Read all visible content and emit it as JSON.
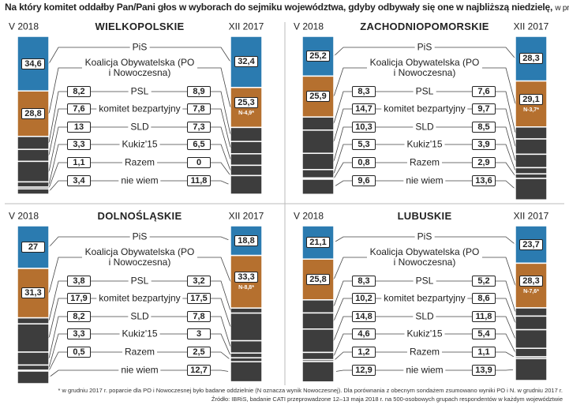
{
  "title": "Na który komitet oddałby Pan/Pani głos w wyborach do sejmiku województwa, gdyby odbywały się one w najbliższą niedzielę,",
  "unit": "w proc.",
  "footnote": "* w grudniu 2017 r. poparcie dla PO i Nowoczesnej było badane oddzielnie (N oznacza wynik Nowoczesnej). Dla porównania z obecnym sondażem zsumowano wyniki PO i N. w grudniu 2017 r.",
  "source": "Źródło: IBRiS, badanie CATI przeprowadzone 12–13 maja 2018 r. na 500-osobowych grupach respondentów w każdym województwie",
  "chart_data": [
    {
      "type": "stacked-bar",
      "title": "WIELKOPOLSKIE",
      "categories": [
        "PiS",
        "Koalicja Obywatelska (PO i Nowoczesna)",
        "PSL",
        "komitet bezpartyjny",
        "SLD",
        "Kukiz'15",
        "Razem",
        "nie wiem"
      ],
      "colors": [
        "#2b7bb0",
        "#b5702f",
        "#3d3d3d",
        "#3d3d3d",
        "#3d3d3d",
        "#3d3d3d",
        "#3d3d3d",
        "#3d3d3d"
      ],
      "ylim": [
        0,
        100
      ],
      "series": [
        {
          "name": "V 2018",
          "values": [
            34.6,
            28.8,
            8.2,
            7.6,
            13,
            3.3,
            1.1,
            3.4
          ],
          "value_labels": [
            "34,6",
            "28,8",
            "8,2",
            "7,6",
            "13",
            "3,3",
            "1,1",
            "3,4"
          ]
        },
        {
          "name": "XII 2017",
          "values": [
            32.4,
            25.3,
            8.9,
            7.8,
            7.3,
            6.5,
            0,
            11.8
          ],
          "value_labels": [
            "32,4",
            "25,3",
            "8,9",
            "7,8",
            "7,3",
            "6,5",
            "0",
            "11,8"
          ],
          "notes": [
            null,
            "N-4,9*",
            null,
            null,
            null,
            null,
            null,
            null
          ]
        }
      ]
    },
    {
      "type": "stacked-bar",
      "title": "ZACHODNIOPOMORSKIE",
      "categories": [
        "PiS",
        "Koalicja Obywatelska (PO i Nowoczesna)",
        "PSL",
        "komitet bezpartyjny",
        "SLD",
        "Kukiz'15",
        "Razem",
        "nie wiem"
      ],
      "colors": [
        "#2b7bb0",
        "#b5702f",
        "#3d3d3d",
        "#3d3d3d",
        "#3d3d3d",
        "#3d3d3d",
        "#3d3d3d",
        "#3d3d3d"
      ],
      "ylim": [
        0,
        100
      ],
      "series": [
        {
          "name": "V 2018",
          "values": [
            25.2,
            25.9,
            8.3,
            14.7,
            10.3,
            5.3,
            0.8,
            9.6
          ],
          "value_labels": [
            "25,2",
            "25,9",
            "8,3",
            "14,7",
            "10,3",
            "5,3",
            "0,8",
            "9,6"
          ]
        },
        {
          "name": "XII 2017",
          "values": [
            28.3,
            29.1,
            7.6,
            9.7,
            8.5,
            3.9,
            2.9,
            13.6
          ],
          "value_labels": [
            "28,3",
            "29,1",
            "7,6",
            "9,7",
            "8,5",
            "3,9",
            "2,9",
            "13,6"
          ],
          "notes": [
            null,
            "N-3,7*",
            null,
            null,
            null,
            null,
            null,
            null
          ]
        }
      ]
    },
    {
      "type": "stacked-bar",
      "title": "DOLNOŚLĄSKIE",
      "categories": [
        "PiS",
        "Koalicja Obywatelska (PO i Nowoczesna)",
        "PSL",
        "komitet bezpartyjny",
        "SLD",
        "Kukiz'15",
        "Razem",
        "nie wiem"
      ],
      "colors": [
        "#2b7bb0",
        "#b5702f",
        "#3d3d3d",
        "#3d3d3d",
        "#3d3d3d",
        "#3d3d3d",
        "#3d3d3d",
        "#3d3d3d"
      ],
      "ylim": [
        0,
        100
      ],
      "series": [
        {
          "name": "V 2018",
          "values": [
            27,
            31.3,
            3.8,
            17.9,
            8.2,
            3.3,
            0.5,
            8
          ],
          "value_labels": [
            "27",
            "31,3",
            "3,8",
            "17,9",
            "8,2",
            "3,3",
            "0,5",
            null
          ]
        },
        {
          "name": "XII 2017",
          "values": [
            18.8,
            33.3,
            3.2,
            17.5,
            7.8,
            3,
            2.5,
            12.7
          ],
          "value_labels": [
            "18,8",
            "33,3",
            "3,2",
            "17,5",
            "7,8",
            "3",
            "2,5",
            "12,7"
          ],
          "notes": [
            null,
            "N-8,8*",
            null,
            null,
            null,
            null,
            null,
            null
          ]
        }
      ]
    },
    {
      "type": "stacked-bar",
      "title": "LUBUSKIE",
      "categories": [
        "PiS",
        "Koalicja Obywatelska (PO i Nowoczesna)",
        "PSL",
        "komitet bezpartyjny",
        "SLD",
        "Kukiz'15",
        "Razem",
        "nie wiem"
      ],
      "colors": [
        "#2b7bb0",
        "#b5702f",
        "#3d3d3d",
        "#3d3d3d",
        "#3d3d3d",
        "#3d3d3d",
        "#3d3d3d",
        "#3d3d3d"
      ],
      "ylim": [
        0,
        100
      ],
      "series": [
        {
          "name": "V 2018",
          "values": [
            21.1,
            25.8,
            8.3,
            10.2,
            14.8,
            4.6,
            1.2,
            12.9
          ],
          "value_labels": [
            "21,1",
            "25,8",
            "8,3",
            "10,2",
            "14,8",
            "4,6",
            "1,2",
            "12,9"
          ]
        },
        {
          "name": "XII 2017",
          "values": [
            23.7,
            28.3,
            5.2,
            8.6,
            11.8,
            5.4,
            1.1,
            13.9
          ],
          "value_labels": [
            "23,7",
            "28,3",
            "5,2",
            "8,6",
            "11,8",
            "5,4",
            "1,1",
            "13,9"
          ],
          "notes": [
            null,
            "N-7,6*",
            null,
            null,
            null,
            null,
            null,
            null
          ]
        }
      ]
    }
  ]
}
